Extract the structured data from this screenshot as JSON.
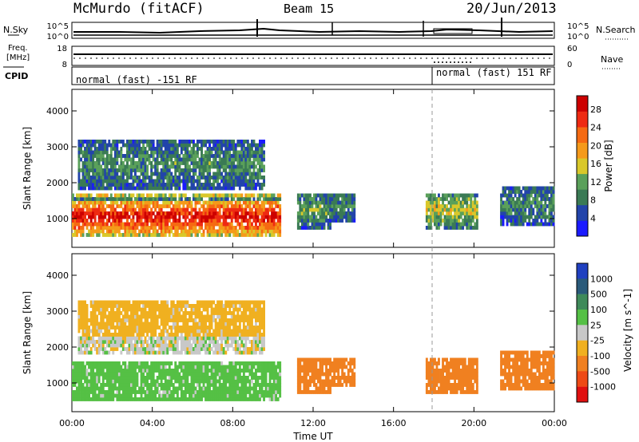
{
  "header": {
    "station": "McMurdo (fitACF)",
    "beam": "Beam 15",
    "date": "20/Jun/2013"
  },
  "left_labels": {
    "nsky": "N.Sky",
    "freq_line1": "Freq.",
    "freq_line2": "[MHz]",
    "cpid": "CPID"
  },
  "right_labels": {
    "nsearch": "N.Search",
    "nave": "Nave"
  },
  "noise_panel": {
    "left_ticks": [
      "10^5",
      "10^0"
    ],
    "right_ticks": [
      "10^5",
      "10^0"
    ]
  },
  "freq_panel": {
    "left_ticks": [
      "18",
      "8"
    ],
    "right_ticks": [
      "60",
      "0"
    ]
  },
  "cpid_panel": {
    "mode_left": "normal (fast) -151 RF",
    "mode_right": "normal (fast) 151 RF"
  },
  "colors": {
    "power_scale": [
      "#1a1aff",
      "#2244aa",
      "#3a7a55",
      "#5aa05a",
      "#d9c82a",
      "#f59a1a",
      "#f56a12",
      "#ee2a12",
      "#cc0000"
    ],
    "velocity_scale": [
      "#2040c0",
      "#2a5a7a",
      "#3f8a5a",
      "#55c045",
      "#c8c8c8",
      "#f0b020",
      "#f08020",
      "#ee4a15",
      "#e01010"
    ]
  },
  "chart_data": [
    {
      "type": "heatmap",
      "name": "Power",
      "ylabel": "Slant Range [km]",
      "xlabel": "Time UT",
      "x_ticks": [
        "00:00",
        "04:00",
        "08:00",
        "12:00",
        "16:00",
        "20:00",
        "00:00"
      ],
      "y_ticks": [
        1000,
        2000,
        3000,
        4000
      ],
      "ylim": [
        200,
        4600
      ],
      "xlim_hours": [
        0,
        24
      ],
      "colorbar_label": "Power [dB]",
      "colorbar_ticks": [
        "4",
        "8",
        "12",
        "16",
        "20",
        "24",
        "28"
      ],
      "regions": [
        {
          "t0": 0,
          "t1": 10.3,
          "r0": 500,
          "r1": 1500,
          "level": 0.85
        },
        {
          "t0": 0,
          "t1": 10.3,
          "r0": 1500,
          "r1": 1700,
          "level": 0.45
        },
        {
          "t0": 0.3,
          "t1": 9.5,
          "r0": 1800,
          "r1": 3200,
          "level": 0.3
        },
        {
          "t0": 11.2,
          "t1": 12.8,
          "r0": 700,
          "r1": 1700,
          "level": 0.35
        },
        {
          "t0": 12.8,
          "t1": 14.0,
          "r0": 900,
          "r1": 1700,
          "level": 0.3
        },
        {
          "t0": 17.6,
          "t1": 20.2,
          "r0": 700,
          "r1": 1700,
          "level": 0.45
        },
        {
          "t0": 21.3,
          "t1": 24.0,
          "r0": 800,
          "r1": 1900,
          "level": 0.3
        }
      ]
    },
    {
      "type": "heatmap",
      "name": "Velocity",
      "ylabel": "Slant Range [km]",
      "xlabel": "Time UT",
      "x_ticks": [
        "00:00",
        "04:00",
        "08:00",
        "12:00",
        "16:00",
        "20:00",
        "00:00"
      ],
      "y_ticks": [
        1000,
        2000,
        3000,
        4000
      ],
      "ylim": [
        200,
        4600
      ],
      "xlim_hours": [
        0,
        24
      ],
      "colorbar_label": "Velocity [m s^-1]",
      "colorbar_ticks": [
        "1000",
        "500",
        "100",
        "25",
        "-25",
        "-100",
        "-500",
        "-1000"
      ],
      "regions": [
        {
          "t0": 0,
          "t1": 10.3,
          "r0": 500,
          "r1": 1600,
          "value": 60
        },
        {
          "t0": 0.3,
          "t1": 9.5,
          "r0": 1800,
          "r1": 2300,
          "value": 0
        },
        {
          "t0": 0.3,
          "t1": 9.5,
          "r0": 2300,
          "r1": 3300,
          "value": -60
        },
        {
          "t0": 11.2,
          "t1": 12.8,
          "r0": 700,
          "r1": 1700,
          "value": -150
        },
        {
          "t0": 12.8,
          "t1": 14.0,
          "r0": 900,
          "r1": 1700,
          "value": -150
        },
        {
          "t0": 17.6,
          "t1": 20.2,
          "r0": 700,
          "r1": 1700,
          "value": -150
        },
        {
          "t0": 21.3,
          "t1": 24.0,
          "r0": 800,
          "r1": 1900,
          "value": -150
        }
      ]
    }
  ]
}
